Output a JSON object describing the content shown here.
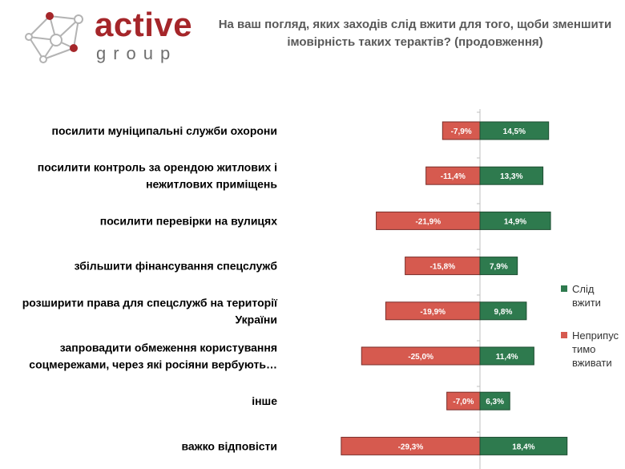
{
  "brand": {
    "name": "active",
    "sub": "group"
  },
  "colors": {
    "positive": "#2e7a4e",
    "negative": "#d65a4f",
    "brand": "#a5262a",
    "axis": "#bfbfbf"
  },
  "chart_data": {
    "type": "bar",
    "orientation": "horizontal-diverging",
    "title": "На ваш погляд, яких заходів слід вжити для того, щоби зменшити імовірність таких терактів? (продовження)",
    "categories": [
      [
        "посилити муніципальні служби охорони"
      ],
      [
        "посилити контроль за орендою житлових і",
        "нежитлових приміщень"
      ],
      [
        "посилити перевірки на вулицях"
      ],
      [
        "збільшити фінансування спецслужб"
      ],
      [
        "розширити права для спецслужб на території",
        "України"
      ],
      [
        "запровадити обмеження користування",
        "соцмережами, через які росіяни вербують…"
      ],
      [
        "інше"
      ],
      [
        "важко відповісти"
      ]
    ],
    "series": [
      {
        "name": "Слід вжити",
        "values": [
          14.5,
          13.3,
          14.9,
          7.9,
          9.8,
          11.4,
          6.3,
          18.4
        ],
        "labels": [
          "14,5%",
          "13,3%",
          "14,9%",
          "7,9%",
          "9,8%",
          "11,4%",
          "6,3%",
          "18,4%"
        ]
      },
      {
        "name": "Неприпустимо вживати",
        "legend_lines": [
          "Неприпус",
          "тимо",
          "вживати"
        ],
        "values": [
          -7.9,
          -11.4,
          -21.9,
          -15.8,
          -19.9,
          -25.0,
          -7.0,
          -29.3
        ],
        "labels": [
          "-7,9%",
          "-11,4%",
          "-21,9%",
          "-15,8%",
          "-19,9%",
          "-25,0%",
          "-7,0%",
          "-29,3%"
        ]
      }
    ],
    "xlim": [
      -29.3,
      18.4
    ],
    "legend": "right"
  }
}
